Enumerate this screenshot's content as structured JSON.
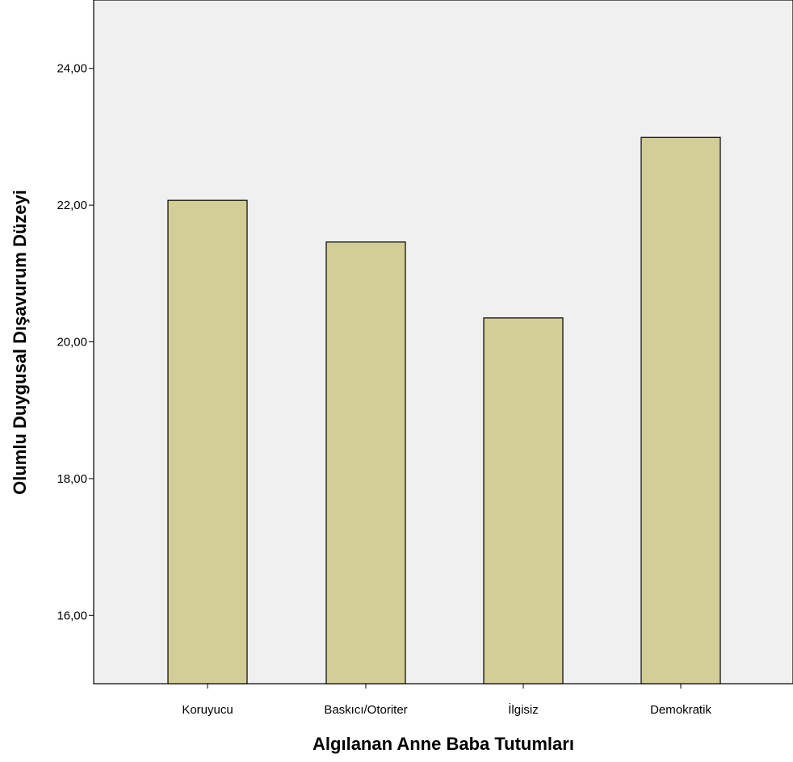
{
  "chart_data": {
    "type": "bar",
    "categories": [
      "Koruyucu",
      "Baskıcı/Otoriter",
      "İlgisiz",
      "Demokratik"
    ],
    "values": [
      22.07,
      21.46,
      20.35,
      22.99
    ],
    "xlabel": "Algılanan Anne Baba Tutumları",
    "ylabel": "Olumlu Duygusal Dışavurum Düzeyi",
    "ylim": [
      15.0,
      25.0
    ],
    "yticks": [
      16,
      18,
      20,
      22,
      24
    ],
    "ytick_labels": [
      "16,00",
      "18,00",
      "20,00",
      "22,00",
      "24,00"
    ],
    "grid": false,
    "colors": {
      "bar_fill": "#d3cd98",
      "bar_stroke": "#000000",
      "plot_background": "#f0f0f0",
      "axis": "#000000"
    }
  }
}
